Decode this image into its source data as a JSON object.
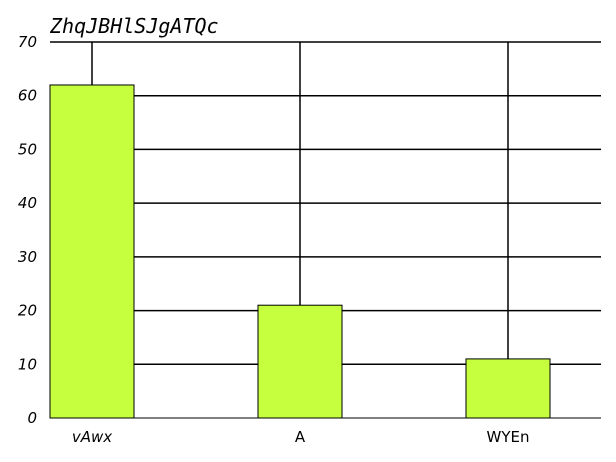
{
  "chart_data": {
    "type": "bar",
    "title": "ZhqJBHlSJgATQc",
    "xlabel": "",
    "ylabel": "",
    "categories": [
      "vAwx",
      "A",
      "WYEn"
    ],
    "category_styles": [
      "italic",
      "normal",
      "normal"
    ],
    "values": [
      62,
      21,
      11
    ],
    "ylim": [
      0,
      70
    ],
    "yticks": [
      0,
      10,
      20,
      30,
      40,
      50,
      60,
      70
    ],
    "grid": true,
    "bar_color": "#c5ff3d",
    "line_color": "#000000"
  }
}
